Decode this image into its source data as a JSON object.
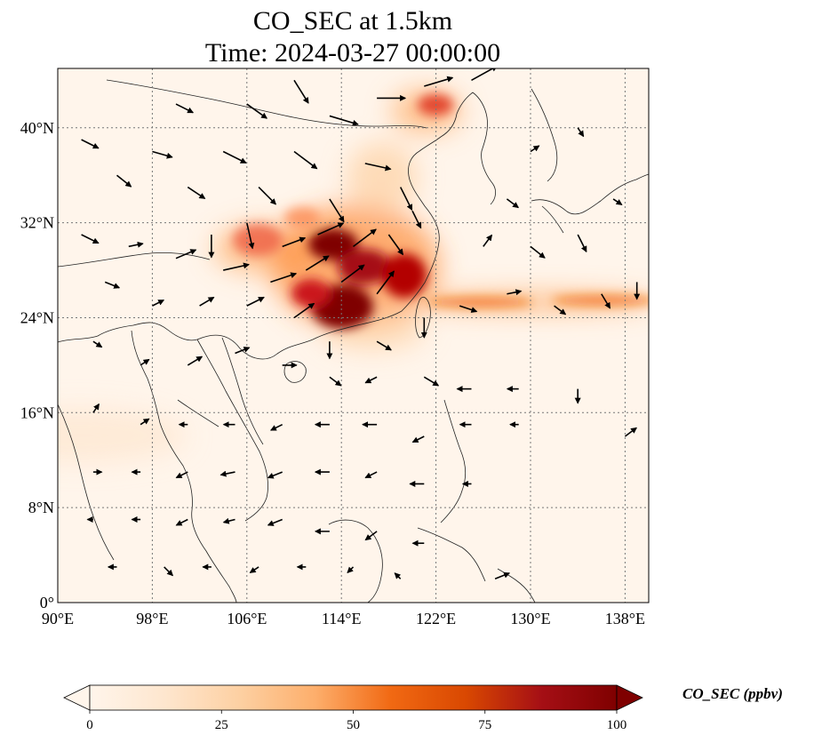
{
  "title": {
    "line1": "CO_SEC at 1.5km",
    "line2": "Time: 2024-03-27 00:00:00"
  },
  "map": {
    "lon_range": [
      90,
      140
    ],
    "lat_range": [
      0,
      45
    ],
    "lon_ticks": [
      {
        "value": 90,
        "label": "90°E"
      },
      {
        "value": 98,
        "label": "98°E"
      },
      {
        "value": 106,
        "label": "106°E"
      },
      {
        "value": 114,
        "label": "114°E"
      },
      {
        "value": 122,
        "label": "122°E"
      },
      {
        "value": 130,
        "label": "130°E"
      },
      {
        "value": 138,
        "label": "138°E"
      }
    ],
    "lat_ticks": [
      {
        "value": 0,
        "label": "0°"
      },
      {
        "value": 8,
        "label": "8°N"
      },
      {
        "value": 16,
        "label": "16°N"
      },
      {
        "value": 24,
        "label": "24°N"
      },
      {
        "value": 32,
        "label": "32°N"
      },
      {
        "value": 40,
        "label": "40°N"
      }
    ],
    "gridlines": true,
    "background_color": "#fff5eb"
  },
  "colorbar": {
    "label": "CO_SEC (ppbv)",
    "range": [
      0,
      100
    ],
    "ticks": [
      {
        "value": 0,
        "label": "0"
      },
      {
        "value": 25,
        "label": "25"
      },
      {
        "value": 50,
        "label": "50"
      },
      {
        "value": 75,
        "label": "75"
      },
      {
        "value": 100,
        "label": "100"
      }
    ],
    "colormap": [
      "#fff5eb",
      "#fee6ce",
      "#fdd0a2",
      "#fdae6b",
      "#f16913",
      "#d94801",
      "#a50f15",
      "#7f0000"
    ],
    "extend": "both"
  },
  "concentration_field": [
    {
      "lon": 114,
      "lat": 29.5,
      "value": 95
    },
    {
      "lon": 116.5,
      "lat": 28,
      "value": 90
    },
    {
      "lon": 113,
      "lat": 25,
      "value": 95
    },
    {
      "lon": 119,
      "lat": 27,
      "value": 85
    },
    {
      "lon": 112,
      "lat": 27,
      "value": 70
    },
    {
      "lon": 107,
      "lat": 29.5,
      "value": 40
    },
    {
      "lon": 124.5,
      "lat": 42,
      "value": 70
    },
    {
      "lon": 132,
      "lat": 25.5,
      "value": 40
    },
    {
      "lon": 95,
      "lat": 14,
      "value": 8
    }
  ],
  "wind_vectors": [
    {
      "lon": 92,
      "lat": 39,
      "u": 0.6,
      "v": -0.3
    },
    {
      "lon": 95,
      "lat": 36,
      "u": 0.5,
      "v": -0.4
    },
    {
      "lon": 98,
      "lat": 38,
      "u": 0.7,
      "v": -0.2
    },
    {
      "lon": 101,
      "lat": 35,
      "u": 0.6,
      "v": -0.4
    },
    {
      "lon": 104,
      "lat": 38,
      "u": 0.8,
      "v": -0.4
    },
    {
      "lon": 107,
      "lat": 35,
      "u": 0.6,
      "v": -0.6
    },
    {
      "lon": 110,
      "lat": 38,
      "u": 0.8,
      "v": -0.6
    },
    {
      "lon": 113,
      "lat": 41,
      "u": 1.0,
      "v": -0.3
    },
    {
      "lon": 117,
      "lat": 42.5,
      "u": 1.0,
      "v": 0.0
    },
    {
      "lon": 121,
      "lat": 43.5,
      "u": 1.0,
      "v": 0.3
    },
    {
      "lon": 125,
      "lat": 44,
      "u": 0.9,
      "v": 0.5
    },
    {
      "lon": 110,
      "lat": 44,
      "u": 0.5,
      "v": -0.8
    },
    {
      "lon": 106,
      "lat": 42,
      "u": 0.7,
      "v": -0.5
    },
    {
      "lon": 100,
      "lat": 42,
      "u": 0.6,
      "v": -0.3
    },
    {
      "lon": 116,
      "lat": 37,
      "u": 0.9,
      "v": -0.2
    },
    {
      "lon": 119,
      "lat": 35,
      "u": 0.4,
      "v": -0.8
    },
    {
      "lon": 113,
      "lat": 34,
      "u": 0.5,
      "v": -0.8
    },
    {
      "lon": 103,
      "lat": 31,
      "u": 0.0,
      "v": -0.8
    },
    {
      "lon": 106,
      "lat": 32,
      "u": 0.2,
      "v": -0.9
    },
    {
      "lon": 109,
      "lat": 30,
      "u": 0.8,
      "v": 0.3
    },
    {
      "lon": 112,
      "lat": 31,
      "u": 0.9,
      "v": 0.4
    },
    {
      "lon": 115,
      "lat": 30,
      "u": 0.8,
      "v": 0.6
    },
    {
      "lon": 118,
      "lat": 31,
      "u": 0.5,
      "v": -0.7
    },
    {
      "lon": 120,
      "lat": 33,
      "u": 0.3,
      "v": -0.6
    },
    {
      "lon": 111,
      "lat": 28,
      "u": 0.8,
      "v": 0.5
    },
    {
      "lon": 114,
      "lat": 27,
      "u": 0.8,
      "v": 0.6
    },
    {
      "lon": 117,
      "lat": 26,
      "u": 0.6,
      "v": 0.8
    },
    {
      "lon": 108,
      "lat": 27,
      "u": 0.9,
      "v": 0.3
    },
    {
      "lon": 104,
      "lat": 28,
      "u": 0.9,
      "v": 0.2
    },
    {
      "lon": 100,
      "lat": 29,
      "u": 0.7,
      "v": 0.3
    },
    {
      "lon": 96,
      "lat": 30,
      "u": 0.5,
      "v": 0.1
    },
    {
      "lon": 92,
      "lat": 31,
      "u": 0.6,
      "v": -0.3
    },
    {
      "lon": 94,
      "lat": 27,
      "u": 0.5,
      "v": -0.2
    },
    {
      "lon": 98,
      "lat": 25,
      "u": 0.4,
      "v": 0.2
    },
    {
      "lon": 102,
      "lat": 25,
      "u": 0.5,
      "v": 0.3
    },
    {
      "lon": 106,
      "lat": 25,
      "u": 0.6,
      "v": 0.3
    },
    {
      "lon": 110,
      "lat": 24,
      "u": 0.7,
      "v": 0.5
    },
    {
      "lon": 113,
      "lat": 22,
      "u": 0.0,
      "v": -0.6
    },
    {
      "lon": 117,
      "lat": 22,
      "u": 0.5,
      "v": -0.3
    },
    {
      "lon": 121,
      "lat": 24,
      "u": 0.0,
      "v": -0.7
    },
    {
      "lon": 124,
      "lat": 25,
      "u": 0.6,
      "v": -0.2
    },
    {
      "lon": 128,
      "lat": 26,
      "u": 0.5,
      "v": 0.1
    },
    {
      "lon": 132,
      "lat": 25,
      "u": 0.4,
      "v": -0.3
    },
    {
      "lon": 136,
      "lat": 26,
      "u": 0.3,
      "v": -0.5
    },
    {
      "lon": 139,
      "lat": 27,
      "u": 0.0,
      "v": -0.6
    },
    {
      "lon": 130,
      "lat": 30,
      "u": 0.5,
      "v": -0.4
    },
    {
      "lon": 134,
      "lat": 31,
      "u": 0.3,
      "v": -0.6
    },
    {
      "lon": 128,
      "lat": 34,
      "u": 0.4,
      "v": -0.3
    },
    {
      "lon": 130,
      "lat": 38,
      "u": 0.3,
      "v": 0.2
    },
    {
      "lon": 134,
      "lat": 40,
      "u": 0.2,
      "v": -0.3
    },
    {
      "lon": 137,
      "lat": 34,
      "u": 0.3,
      "v": -0.2
    },
    {
      "lon": 126,
      "lat": 30,
      "u": 0.3,
      "v": 0.4
    },
    {
      "lon": 93,
      "lat": 22,
      "u": 0.3,
      "v": -0.2
    },
    {
      "lon": 97,
      "lat": 20,
      "u": 0.3,
      "v": 0.2
    },
    {
      "lon": 101,
      "lat": 20,
      "u": 0.5,
      "v": 0.3
    },
    {
      "lon": 105,
      "lat": 21,
      "u": 0.5,
      "v": 0.2
    },
    {
      "lon": 109,
      "lat": 20,
      "u": 0.5,
      "v": 0.0
    },
    {
      "lon": 113,
      "lat": 19,
      "u": 0.4,
      "v": -0.3
    },
    {
      "lon": 117,
      "lat": 19,
      "u": -0.4,
      "v": -0.2
    },
    {
      "lon": 121,
      "lat": 19,
      "u": 0.5,
      "v": -0.3
    },
    {
      "lon": 125,
      "lat": 18,
      "u": -0.5,
      "v": 0.0
    },
    {
      "lon": 129,
      "lat": 18,
      "u": -0.4,
      "v": 0.0
    },
    {
      "lon": 134,
      "lat": 18,
      "u": 0.0,
      "v": -0.5
    },
    {
      "lon": 138,
      "lat": 14,
      "u": 0.4,
      "v": 0.3
    },
    {
      "lon": 93,
      "lat": 16,
      "u": 0.2,
      "v": 0.3
    },
    {
      "lon": 97,
      "lat": 15,
      "u": 0.3,
      "v": 0.2
    },
    {
      "lon": 101,
      "lat": 15,
      "u": -0.3,
      "v": 0.0
    },
    {
      "lon": 105,
      "lat": 15,
      "u": -0.4,
      "v": 0.0
    },
    {
      "lon": 109,
      "lat": 15,
      "u": -0.4,
      "v": -0.2
    },
    {
      "lon": 113,
      "lat": 15,
      "u": -0.5,
      "v": 0.0
    },
    {
      "lon": 117,
      "lat": 15,
      "u": -0.5,
      "v": 0.0
    },
    {
      "lon": 121,
      "lat": 14,
      "u": -0.4,
      "v": -0.2
    },
    {
      "lon": 125,
      "lat": 15,
      "u": -0.4,
      "v": 0.0
    },
    {
      "lon": 129,
      "lat": 15,
      "u": -0.3,
      "v": 0.0
    },
    {
      "lon": 93,
      "lat": 11,
      "u": 0.3,
      "v": 0.0
    },
    {
      "lon": 97,
      "lat": 11,
      "u": -0.3,
      "v": 0.0
    },
    {
      "lon": 101,
      "lat": 11,
      "u": -0.4,
      "v": -0.2
    },
    {
      "lon": 105,
      "lat": 11,
      "u": -0.5,
      "v": -0.1
    },
    {
      "lon": 109,
      "lat": 11,
      "u": -0.5,
      "v": -0.2
    },
    {
      "lon": 113,
      "lat": 11,
      "u": -0.5,
      "v": 0.0
    },
    {
      "lon": 117,
      "lat": 11,
      "u": -0.4,
      "v": -0.2
    },
    {
      "lon": 121,
      "lat": 10,
      "u": -0.5,
      "v": 0.0
    },
    {
      "lon": 125,
      "lat": 10,
      "u": -0.3,
      "v": 0.0
    },
    {
      "lon": 93,
      "lat": 7,
      "u": -0.2,
      "v": 0.0
    },
    {
      "lon": 97,
      "lat": 7,
      "u": -0.3,
      "v": 0.0
    },
    {
      "lon": 101,
      "lat": 7,
      "u": -0.4,
      "v": -0.2
    },
    {
      "lon": 105,
      "lat": 7,
      "u": -0.4,
      "v": -0.1
    },
    {
      "lon": 109,
      "lat": 7,
      "u": -0.5,
      "v": -0.2
    },
    {
      "lon": 113,
      "lat": 6,
      "u": -0.5,
      "v": 0.0
    },
    {
      "lon": 117,
      "lat": 6,
      "u": -0.4,
      "v": -0.3
    },
    {
      "lon": 121,
      "lat": 5,
      "u": -0.4,
      "v": 0.0
    },
    {
      "lon": 95,
      "lat": 3,
      "u": -0.3,
      "v": 0.0
    },
    {
      "lon": 99,
      "lat": 3,
      "u": 0.3,
      "v": -0.3
    },
    {
      "lon": 103,
      "lat": 3,
      "u": -0.3,
      "v": 0.0
    },
    {
      "lon": 107,
      "lat": 3,
      "u": -0.3,
      "v": -0.2
    },
    {
      "lon": 111,
      "lat": 3,
      "u": -0.3,
      "v": 0.0
    },
    {
      "lon": 115,
      "lat": 3,
      "u": -0.2,
      "v": -0.2
    },
    {
      "lon": 119,
      "lat": 2,
      "u": -0.2,
      "v": 0.2
    },
    {
      "lon": 127,
      "lat": 2,
      "u": 0.5,
      "v": 0.2
    }
  ]
}
